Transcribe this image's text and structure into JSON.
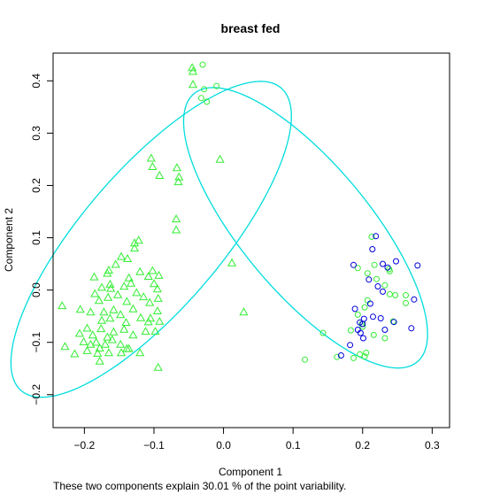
{
  "chart_data": {
    "type": "scatter",
    "title": "breast fed",
    "xlabel": "Component 1",
    "ylabel": "Component 2",
    "xlim": [
      -0.245,
      0.325
    ],
    "ylim": [
      -0.263,
      0.453
    ],
    "xticks": [
      -0.2,
      -0.1,
      0.0,
      0.1,
      0.2,
      0.3
    ],
    "yticks": [
      -0.2,
      -0.1,
      0.0,
      0.1,
      0.2,
      0.3,
      0.4
    ],
    "xtick_labels": [
      "−0.2",
      "−0.1",
      "0.0",
      "0.1",
      "0.2",
      "0.3"
    ],
    "ytick_labels": [
      "−0.2",
      "−0.1",
      "0.0",
      "0.1",
      "0.2",
      "0.3",
      "0.4"
    ],
    "grid": false,
    "colors": {
      "green": "#33ee33",
      "blue": "#0000dd",
      "cyan": "#00dddd"
    },
    "series": [
      {
        "marker": "triangle",
        "color": "#33ee33",
        "points": [
          [
            -0.045,
            0.425
          ],
          [
            -0.044,
            0.418
          ],
          [
            -0.044,
            0.393
          ],
          [
            -0.104,
            0.252
          ],
          [
            -0.102,
            0.236
          ],
          [
            -0.092,
            0.219
          ],
          [
            -0.005,
            0.25
          ],
          [
            -0.067,
            0.234
          ],
          [
            -0.064,
            0.216
          ],
          [
            -0.065,
            0.207
          ],
          [
            -0.068,
            0.136
          ],
          [
            -0.068,
            0.115
          ],
          [
            0.012,
            0.052
          ],
          [
            0.029,
            -0.042
          ],
          [
            -0.128,
            0.09
          ],
          [
            -0.122,
            0.095
          ],
          [
            -0.128,
            0.08
          ],
          [
            -0.138,
            0.06
          ],
          [
            -0.147,
            0.064
          ],
          [
            -0.155,
            0.049
          ],
          [
            -0.165,
            0.038
          ],
          [
            -0.186,
            0.025
          ],
          [
            -0.167,
            0.032
          ],
          [
            -0.163,
            0.011
          ],
          [
            -0.143,
            0.007
          ],
          [
            -0.136,
            0.023
          ],
          [
            -0.12,
            0.035
          ],
          [
            -0.108,
            0.026
          ],
          [
            -0.102,
            0.037
          ],
          [
            -0.093,
            0.028
          ],
          [
            -0.1,
            0.012
          ],
          [
            -0.095,
            0.002
          ],
          [
            -0.133,
            0.013
          ],
          [
            -0.162,
            0.003
          ],
          [
            -0.175,
            0.005
          ],
          [
            -0.185,
            -0.007
          ],
          [
            -0.179,
            -0.02
          ],
          [
            -0.166,
            -0.014
          ],
          [
            -0.152,
            -0.009
          ],
          [
            -0.139,
            -0.022
          ],
          [
            -0.125,
            -0.005
          ],
          [
            -0.115,
            -0.013
          ],
          [
            -0.106,
            -0.024
          ],
          [
            -0.094,
            -0.016
          ],
          [
            -0.095,
            -0.04
          ],
          [
            -0.105,
            -0.054
          ],
          [
            -0.092,
            -0.06
          ],
          [
            -0.232,
            -0.03
          ],
          [
            -0.206,
            -0.037
          ],
          [
            -0.191,
            -0.042
          ],
          [
            -0.172,
            -0.042
          ],
          [
            -0.158,
            -0.038
          ],
          [
            -0.148,
            -0.047
          ],
          [
            -0.13,
            -0.036
          ],
          [
            -0.119,
            -0.053
          ],
          [
            -0.108,
            -0.061
          ],
          [
            -0.175,
            -0.058
          ],
          [
            -0.163,
            -0.054
          ],
          [
            -0.14,
            -0.062
          ],
          [
            -0.207,
            -0.083
          ],
          [
            -0.196,
            -0.073
          ],
          [
            -0.188,
            -0.086
          ],
          [
            -0.176,
            -0.074
          ],
          [
            -0.183,
            -0.1
          ],
          [
            -0.167,
            -0.09
          ],
          [
            -0.158,
            -0.08
          ],
          [
            -0.143,
            -0.075
          ],
          [
            -0.13,
            -0.086
          ],
          [
            -0.112,
            -0.079
          ],
          [
            -0.098,
            -0.079
          ],
          [
            -0.201,
            -0.099
          ],
          [
            -0.191,
            -0.104
          ],
          [
            -0.178,
            -0.111
          ],
          [
            -0.17,
            -0.104
          ],
          [
            -0.16,
            -0.095
          ],
          [
            -0.148,
            -0.104
          ],
          [
            -0.136,
            -0.112
          ],
          [
            -0.228,
            -0.108
          ],
          [
            -0.214,
            -0.122
          ],
          [
            -0.196,
            -0.116
          ],
          [
            -0.181,
            -0.121
          ],
          [
            -0.165,
            -0.12
          ],
          [
            -0.147,
            -0.12
          ],
          [
            -0.139,
            -0.112
          ],
          [
            -0.178,
            -0.136
          ],
          [
            -0.094,
            -0.148
          ],
          [
            -0.12,
            -0.12
          ]
        ]
      },
      {
        "marker": "circle",
        "color": "#33ee33",
        "points": [
          [
            -0.03,
            0.431
          ],
          [
            -0.01,
            0.39
          ],
          [
            -0.028,
            0.384
          ],
          [
            -0.032,
            0.367
          ],
          [
            -0.024,
            0.36
          ],
          [
            0.117,
            -0.133
          ],
          [
            0.143,
            -0.082
          ],
          [
            0.163,
            -0.128
          ],
          [
            0.183,
            -0.077
          ],
          [
            0.187,
            -0.13
          ],
          [
            0.196,
            -0.123
          ],
          [
            0.203,
            -0.127
          ],
          [
            0.205,
            -0.12
          ],
          [
            0.199,
            -0.065
          ],
          [
            0.193,
            -0.047
          ],
          [
            0.216,
            -0.086
          ],
          [
            0.232,
            -0.092
          ],
          [
            0.193,
            0.042
          ],
          [
            0.207,
            0.032
          ],
          [
            0.217,
            0.048
          ],
          [
            0.22,
            0.021
          ],
          [
            0.213,
            0.102
          ],
          [
            0.238,
            0.04
          ],
          [
            0.239,
            0.036
          ],
          [
            0.232,
            0.009
          ],
          [
            0.247,
            -0.01
          ],
          [
            0.244,
            -0.06
          ],
          [
            0.262,
            -0.01
          ],
          [
            0.262,
            -0.025
          ],
          [
            0.239,
            -0.008
          ],
          [
            0.207,
            -0.02
          ],
          [
            0.203,
            -0.033
          ],
          [
            0.2,
            -0.07
          ]
        ]
      },
      {
        "marker": "circle",
        "color": "#0000dd",
        "points": [
          [
            0.219,
            0.103
          ],
          [
            0.214,
            0.078
          ],
          [
            0.187,
            0.048
          ],
          [
            0.229,
            0.05
          ],
          [
            0.248,
            0.055
          ],
          [
            0.279,
            0.047
          ],
          [
            0.236,
            0.043
          ],
          [
            0.209,
            0.02
          ],
          [
            0.222,
            0.007
          ],
          [
            0.229,
            -0.003
          ],
          [
            0.189,
            -0.036
          ],
          [
            0.211,
            -0.026
          ],
          [
            0.226,
            -0.054
          ],
          [
            0.202,
            -0.055
          ],
          [
            0.196,
            -0.062
          ],
          [
            0.2,
            -0.065
          ],
          [
            0.193,
            -0.076
          ],
          [
            0.197,
            -0.082
          ],
          [
            0.201,
            -0.092
          ],
          [
            0.182,
            -0.105
          ],
          [
            0.169,
            -0.125
          ],
          [
            0.245,
            -0.061
          ],
          [
            0.274,
            -0.018
          ],
          [
            0.27,
            -0.073
          ],
          [
            0.232,
            -0.076
          ],
          [
            0.215,
            -0.051
          ]
        ]
      }
    ],
    "ellipses": [
      {
        "center": [
          -0.104,
          0.097
        ],
        "semi_axes": [
          0.11,
          0.346
        ],
        "angle_deg": 31
      },
      {
        "center": [
          0.118,
          0.119
        ],
        "semi_axes": [
          0.101,
          0.304
        ],
        "angle_deg": -30
      }
    ]
  },
  "caption": "These two components explain 30.01 % of the point variability."
}
